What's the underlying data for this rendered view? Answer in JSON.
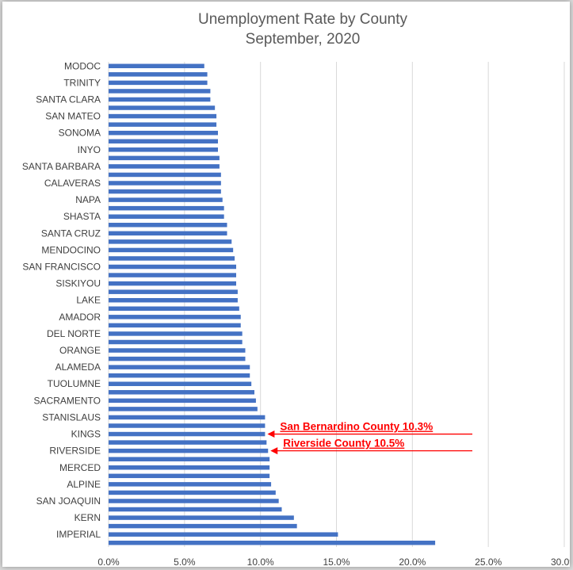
{
  "chart_data": {
    "type": "bar",
    "orientation": "horizontal",
    "title": [
      "Unemployment Rate by County",
      "September, 2020"
    ],
    "xlabel": "",
    "ylabel": "",
    "xlim": [
      0,
      30
    ],
    "x_ticks": [
      "0.0%",
      "5.0%",
      "10.0%",
      "15.0%",
      "20.0%",
      "25.0%",
      "30.0%"
    ],
    "x_tick_values": [
      0,
      5,
      10,
      15,
      20,
      25,
      30
    ],
    "grid": true,
    "bar_color": "#4472c4",
    "grid_color": "#d9d9d9",
    "categories": [
      "MODOC",
      "",
      "TRINITY",
      "",
      "SANTA CLARA",
      "",
      "SAN MATEO",
      "",
      "SONOMA",
      "",
      "INYO",
      "",
      "SANTA BARBARA",
      "",
      "CALAVERAS",
      "",
      "NAPA",
      "",
      "SHASTA",
      "",
      "SANTA CRUZ",
      "",
      "MENDOCINO",
      "",
      "SAN FRANCISCO",
      "",
      "SISKIYOU",
      "",
      "LAKE",
      "",
      "AMADOR",
      "",
      "DEL NORTE",
      "",
      "ORANGE",
      "",
      "ALAMEDA",
      "",
      "TUOLUMNE",
      "",
      "SACRAMENTO",
      "",
      "STANISLAUS",
      "",
      "KINGS",
      "",
      "RIVERSIDE",
      "",
      "MERCED",
      "",
      "ALPINE",
      "",
      "SAN JOAQUIN",
      "",
      "KERN",
      "",
      "IMPERIAL",
      ""
    ],
    "values": [
      6.3,
      6.5,
      6.5,
      6.7,
      6.7,
      7.0,
      7.1,
      7.1,
      7.2,
      7.2,
      7.2,
      7.3,
      7.3,
      7.4,
      7.4,
      7.4,
      7.5,
      7.6,
      7.6,
      7.8,
      7.8,
      8.1,
      8.2,
      8.3,
      8.4,
      8.4,
      8.4,
      8.5,
      8.5,
      8.6,
      8.7,
      8.7,
      8.8,
      8.8,
      9.0,
      9.0,
      9.3,
      9.3,
      9.4,
      9.6,
      9.7,
      9.8,
      10.3,
      10.3,
      10.3,
      10.4,
      10.5,
      10.6,
      10.6,
      10.6,
      10.7,
      11.0,
      11.2,
      11.4,
      12.2,
      12.4,
      15.1,
      21.5
    ],
    "annotations": [
      {
        "text": "San Bernardino County 10.3%",
        "category_index": 44,
        "color": "#ff0000"
      },
      {
        "text": "Riverside County 10.5%",
        "category_index": 46,
        "color": "#ff0000"
      }
    ]
  }
}
